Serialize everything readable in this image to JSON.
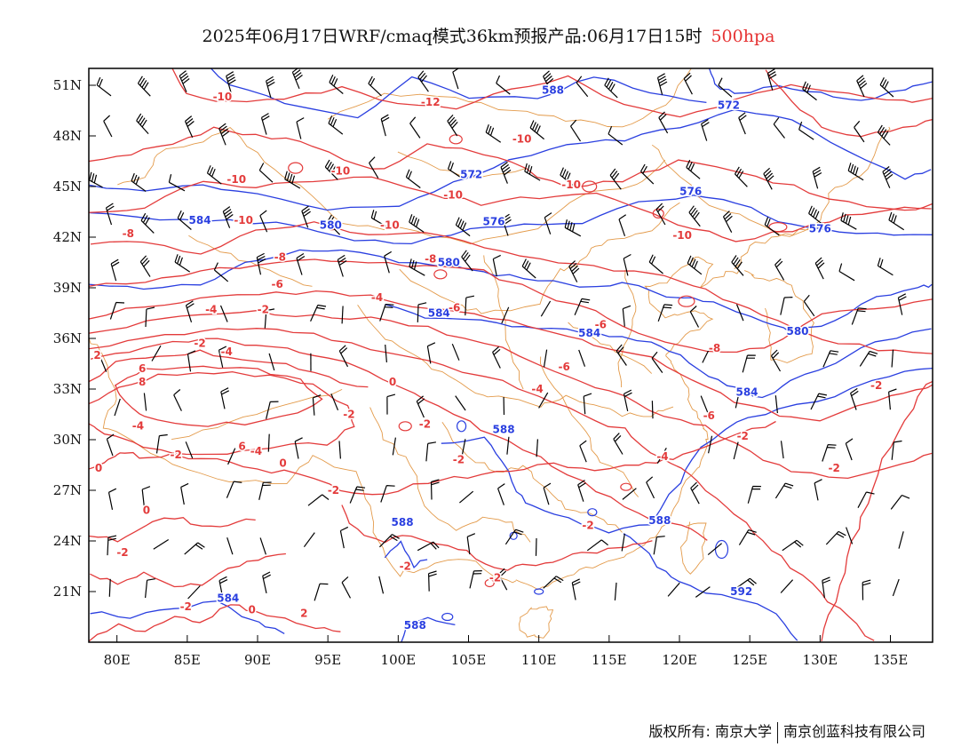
{
  "title": {
    "main": "2025年06月17日WRF/cmaq模式36km预报产品:06月17日15时",
    "level": "500hpa"
  },
  "map": {
    "lon_ticks": [
      "80E",
      "85E",
      "90E",
      "95E",
      "100E",
      "105E",
      "110E",
      "115E",
      "120E",
      "125E",
      "130E",
      "135E"
    ],
    "lat_ticks": [
      "51N",
      "48N",
      "45N",
      "42N",
      "39N",
      "36N",
      "33N",
      "30N",
      "27N",
      "24N",
      "21N"
    ],
    "height_color": "#2a3fe0",
    "temp_color": "#e33b3b",
    "border_color": "#e39a4a",
    "height_labels": [
      {
        "text": "588",
        "lon": 111.0,
        "lat": 50.5
      },
      {
        "text": "572",
        "lon": 123.5,
        "lat": 49.6
      },
      {
        "text": "572",
        "lon": 105.2,
        "lat": 45.5
      },
      {
        "text": "576",
        "lon": 120.8,
        "lat": 44.5
      },
      {
        "text": "576",
        "lon": 106.8,
        "lat": 42.7
      },
      {
        "text": "584",
        "lon": 85.9,
        "lat": 42.8
      },
      {
        "text": "580",
        "lon": 95.2,
        "lat": 42.5
      },
      {
        "text": "580",
        "lon": 103.6,
        "lat": 40.3
      },
      {
        "text": "576",
        "lon": 130.0,
        "lat": 42.3
      },
      {
        "text": "584",
        "lon": 102.9,
        "lat": 37.3
      },
      {
        "text": "584",
        "lon": 113.6,
        "lat": 36.1
      },
      {
        "text": "580",
        "lon": 128.4,
        "lat": 36.2
      },
      {
        "text": "584",
        "lon": 124.8,
        "lat": 32.6
      },
      {
        "text": "588",
        "lon": 107.5,
        "lat": 30.4
      },
      {
        "text": "588",
        "lon": 100.3,
        "lat": 24.9
      },
      {
        "text": "588",
        "lon": 118.6,
        "lat": 25.0
      },
      {
        "text": "592",
        "lon": 124.4,
        "lat": 20.8
      },
      {
        "text": "584",
        "lon": 87.9,
        "lat": 20.4
      },
      {
        "text": "588",
        "lon": 101.2,
        "lat": 18.8
      }
    ],
    "temp_labels": [
      {
        "text": "-10",
        "lon": 87.5,
        "lat": 50.1
      },
      {
        "text": "-12",
        "lon": 102.3,
        "lat": 49.8
      },
      {
        "text": "-10",
        "lon": 108.8,
        "lat": 47.6
      },
      {
        "text": "-10",
        "lon": 88.5,
        "lat": 45.2
      },
      {
        "text": "-10",
        "lon": 95.9,
        "lat": 45.7
      },
      {
        "text": "-10",
        "lon": 103.9,
        "lat": 44.3
      },
      {
        "text": "-10",
        "lon": 112.3,
        "lat": 44.9
      },
      {
        "text": "-10",
        "lon": 89.0,
        "lat": 42.8
      },
      {
        "text": "-10",
        "lon": 99.4,
        "lat": 42.5
      },
      {
        "text": "-10",
        "lon": 120.2,
        "lat": 41.9
      },
      {
        "text": "-8",
        "lon": 80.8,
        "lat": 42.0
      },
      {
        "text": "-8",
        "lon": 91.6,
        "lat": 40.6
      },
      {
        "text": "-8",
        "lon": 102.3,
        "lat": 40.5
      },
      {
        "text": "-6",
        "lon": 91.4,
        "lat": 39.0
      },
      {
        "text": "-4",
        "lon": 86.7,
        "lat": 37.5
      },
      {
        "text": "-2",
        "lon": 90.4,
        "lat": 37.5
      },
      {
        "text": "-4",
        "lon": 98.5,
        "lat": 38.2
      },
      {
        "text": "-6",
        "lon": 104.0,
        "lat": 37.6
      },
      {
        "text": "-6",
        "lon": 114.4,
        "lat": 36.6
      },
      {
        "text": "-8",
        "lon": 122.5,
        "lat": 35.2
      },
      {
        "text": "-2",
        "lon": 85.9,
        "lat": 35.5
      },
      {
        "text": "-4",
        "lon": 87.8,
        "lat": 35.0
      },
      {
        "text": "2",
        "lon": 78.6,
        "lat": 34.8
      },
      {
        "text": "6",
        "lon": 81.8,
        "lat": 34.0
      },
      {
        "text": "8",
        "lon": 81.8,
        "lat": 33.2
      },
      {
        "text": "0",
        "lon": 99.6,
        "lat": 33.2
      },
      {
        "text": "-6",
        "lon": 111.8,
        "lat": 34.1
      },
      {
        "text": "-4",
        "lon": 109.9,
        "lat": 32.8
      },
      {
        "text": "-2",
        "lon": 96.5,
        "lat": 31.3
      },
      {
        "text": "-2",
        "lon": 101.9,
        "lat": 30.7
      },
      {
        "text": "-6",
        "lon": 122.1,
        "lat": 31.2
      },
      {
        "text": "-2",
        "lon": 124.5,
        "lat": 30.0
      },
      {
        "text": "-4",
        "lon": 81.5,
        "lat": 30.6
      },
      {
        "text": "6",
        "lon": 88.9,
        "lat": 29.4
      },
      {
        "text": "-4",
        "lon": 89.9,
        "lat": 29.1
      },
      {
        "text": "-2",
        "lon": 84.2,
        "lat": 28.9
      },
      {
        "text": "0",
        "lon": 91.8,
        "lat": 28.4
      },
      {
        "text": "-2",
        "lon": 104.3,
        "lat": 28.6
      },
      {
        "text": "-4",
        "lon": 118.8,
        "lat": 28.8
      },
      {
        "text": "-2",
        "lon": 131.0,
        "lat": 28.1
      },
      {
        "text": "0",
        "lon": 78.7,
        "lat": 28.1
      },
      {
        "text": "-2",
        "lon": 95.4,
        "lat": 26.8
      },
      {
        "text": "0",
        "lon": 82.1,
        "lat": 25.6
      },
      {
        "text": "-2",
        "lon": 113.5,
        "lat": 24.7
      },
      {
        "text": "-2",
        "lon": 80.4,
        "lat": 23.1
      },
      {
        "text": "-2",
        "lon": 100.5,
        "lat": 22.3
      },
      {
        "text": "-2",
        "lon": 106.9,
        "lat": 21.6
      },
      {
        "text": "-2",
        "lon": 134.0,
        "lat": 33.0
      },
      {
        "text": "-2",
        "lon": 84.9,
        "lat": 19.9
      },
      {
        "text": "0",
        "lon": 89.6,
        "lat": 19.7
      },
      {
        "text": "2",
        "lon": 93.3,
        "lat": 19.5
      }
    ]
  },
  "footer": {
    "copyright": "版权所有: 南京大学",
    "company": "南京创蓝科技有限公司"
  }
}
